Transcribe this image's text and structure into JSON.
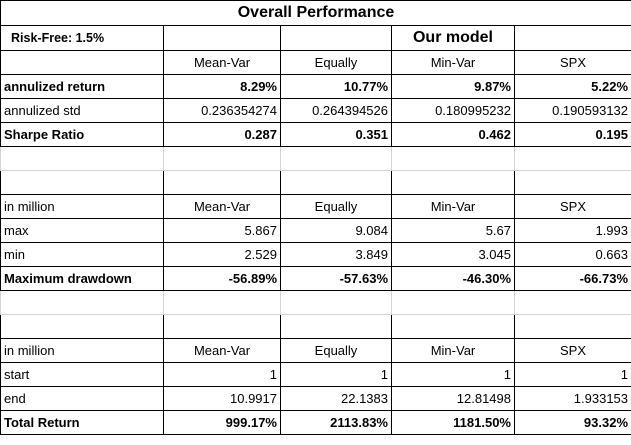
{
  "title": "Overall Performance",
  "risk_free": "Risk-Free: 1.5%",
  "our_model": "Our model",
  "columns": [
    "Mean-Var",
    "Equally",
    "Min-Var",
    "SPX"
  ],
  "section1": {
    "rows": [
      {
        "label": "annulized return",
        "values": [
          "8.29%",
          "10.77%",
          "9.87%",
          "5.22%"
        ]
      },
      {
        "label": "annulized std",
        "values": [
          "0.236354274",
          "0.264394526",
          "0.180995232",
          "0.190593132"
        ]
      },
      {
        "label": "Sharpe Ratio",
        "values": [
          "0.287",
          "0.351",
          "0.462",
          "0.195"
        ]
      }
    ]
  },
  "section2": {
    "header": "in million",
    "rows": [
      {
        "label": "max",
        "values": [
          "5.867",
          "9.084",
          "5.67",
          "1.993"
        ]
      },
      {
        "label": "min",
        "values": [
          "2.529",
          "3.849",
          "3.045",
          "0.663"
        ]
      },
      {
        "label": "Maximum drawdown",
        "values": [
          "-56.89%",
          "-57.63%",
          "-46.30%",
          "-66.73%"
        ]
      }
    ]
  },
  "section3": {
    "header": "in million",
    "rows": [
      {
        "label": "start",
        "values": [
          "1",
          "1",
          "1",
          "1"
        ]
      },
      {
        "label": "end",
        "values": [
          "10.9917",
          "22.1383",
          "12.81498",
          "1.933153"
        ]
      },
      {
        "label": "Total Return",
        "values": [
          "999.17%",
          "2113.83%",
          "1181.50%",
          "93.32%"
        ]
      }
    ]
  }
}
